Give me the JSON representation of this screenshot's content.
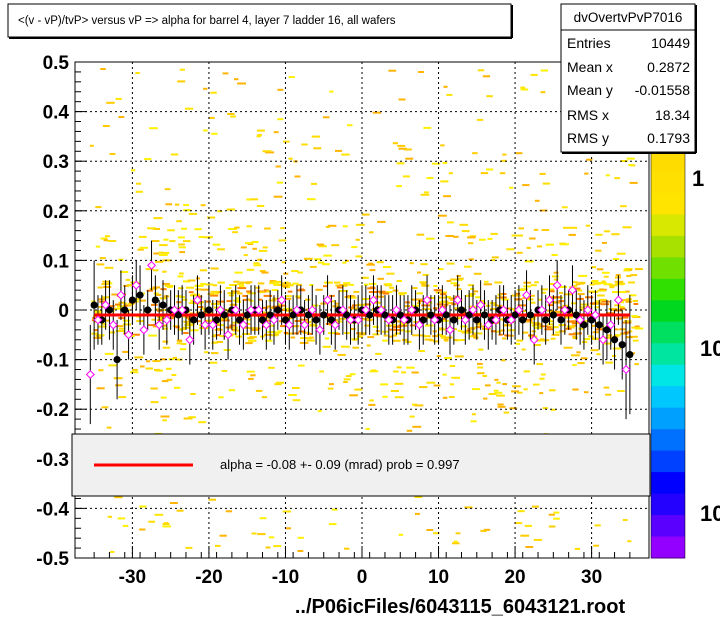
{
  "title": "<(v - vP)/tvP> versus   vP => alpha for barrel 4, layer 7 ladder 16, all wafers",
  "footer": "../P06icFiles/6043115_6043121.root",
  "stats": {
    "name": "dvOvertvPvP7016",
    "rows": [
      {
        "label": "Entries",
        "value": "10449"
      },
      {
        "label": "Mean x",
        "value": "0.2872"
      },
      {
        "label": "Mean y",
        "value": "-0.01558"
      },
      {
        "label": "RMS x",
        "value": "18.34"
      },
      {
        "label": "RMS y",
        "value": "0.1793"
      }
    ]
  },
  "legend": {
    "text": "alpha =   -0.08 +-  0.09 (mrad) prob = 0.997",
    "line_color": "#ff0000"
  },
  "palette": {
    "labels": [
      "1",
      "10",
      "10"
    ],
    "colors": [
      "#9400ff",
      "#5a00ff",
      "#2400ff",
      "#0000ff",
      "#0040ff",
      "#0070ff",
      "#00a0ff",
      "#00c8ff",
      "#00e6e6",
      "#00e6a0",
      "#00e060",
      "#00d820",
      "#30e000",
      "#70e000",
      "#a8e000",
      "#d8e800",
      "#ffe400",
      "#ffe000",
      "#ffdc00"
    ]
  },
  "chart_data": {
    "type": "scatter",
    "xlim": [
      -37.5,
      37.5
    ],
    "ylim": [
      -0.5,
      0.5
    ],
    "x_ticks": [
      -30,
      -20,
      -10,
      0,
      10,
      20,
      30
    ],
    "x_tick_labels": [
      "-30",
      "-20",
      "-10",
      "0",
      "10",
      "20",
      "30"
    ],
    "y_ticks": [
      -0.5,
      -0.4,
      -0.3,
      -0.2,
      -0.1,
      0,
      0.1,
      0.2,
      0.3,
      0.4,
      0.5
    ],
    "y_tick_labels": [
      "-0.5",
      "-0.4",
      "-0.3",
      "-0.2",
      "-0.1",
      "0",
      "0.1",
      "0.2",
      "0.3",
      "0.4",
      "0.5"
    ],
    "grid": true,
    "fit_line": {
      "x": [
        -35,
        35
      ],
      "y": [
        -0.01,
        -0.01
      ]
    },
    "series": [
      {
        "marker": "filled-circle",
        "color": "#000000",
        "x": [
          -35,
          -34,
          -33,
          -32,
          -31,
          -30,
          -29,
          -28,
          -27,
          -26,
          -25,
          -24,
          -23,
          -22,
          -21,
          -20,
          -19,
          -18,
          -17,
          -16,
          -15,
          -14,
          -13,
          -12,
          -11,
          -10,
          -9,
          -8,
          -7,
          -6,
          -5,
          -4,
          -3,
          -2,
          -1,
          0,
          1,
          2,
          3,
          4,
          5,
          6,
          7,
          8,
          9,
          10,
          11,
          12,
          13,
          14,
          15,
          16,
          17,
          18,
          19,
          20,
          21,
          22,
          23,
          24,
          25,
          26,
          27,
          28,
          29,
          30,
          31,
          32,
          33,
          34,
          35
        ],
        "y": [
          0.01,
          -0.02,
          0.0,
          -0.1,
          0.0,
          0.02,
          0.03,
          0.0,
          0.02,
          0.01,
          0.0,
          -0.01,
          0.0,
          -0.02,
          -0.01,
          0.0,
          -0.02,
          -0.01,
          0.0,
          -0.02,
          -0.01,
          0.0,
          -0.02,
          -0.01,
          0.0,
          -0.02,
          -0.01,
          0.0,
          -0.01,
          -0.02,
          -0.01,
          -0.02,
          0.0,
          -0.01,
          -0.02,
          0.0,
          -0.01,
          0.0,
          -0.01,
          -0.02,
          -0.01,
          -0.02,
          0.0,
          -0.02,
          -0.01,
          -0.02,
          -0.01,
          -0.02,
          0.0,
          -0.01,
          -0.02,
          -0.01,
          -0.02,
          0.0,
          -0.02,
          -0.01,
          -0.02,
          -0.01,
          0.0,
          -0.02,
          -0.01,
          -0.02,
          0.0,
          -0.01,
          -0.03,
          -0.02,
          -0.03,
          -0.04,
          -0.06,
          -0.07,
          -0.09
        ],
        "err": [
          0.09,
          0.05,
          0.06,
          0.08,
          0.05,
          0.05,
          0.06,
          0.04,
          0.05,
          0.05,
          0.04,
          0.05,
          0.04,
          0.05,
          0.04,
          0.05,
          0.04,
          0.05,
          0.04,
          0.05,
          0.04,
          0.05,
          0.04,
          0.05,
          0.04,
          0.05,
          0.04,
          0.05,
          0.04,
          0.05,
          0.04,
          0.05,
          0.04,
          0.05,
          0.04,
          0.05,
          0.04,
          0.05,
          0.04,
          0.05,
          0.04,
          0.05,
          0.04,
          0.05,
          0.04,
          0.05,
          0.04,
          0.05,
          0.04,
          0.05,
          0.04,
          0.05,
          0.04,
          0.05,
          0.04,
          0.05,
          0.04,
          0.05,
          0.04,
          0.05,
          0.04,
          0.05,
          0.04,
          0.05,
          0.05,
          0.05,
          0.05,
          0.06,
          0.06,
          0.07,
          0.12
        ]
      },
      {
        "marker": "open-diamond",
        "color": "#ff00ff",
        "x": [
          -35.5,
          -34.5,
          -33.5,
          -32.5,
          -31.5,
          -30.5,
          -29.5,
          -28.5,
          -27.5,
          -26.5,
          -25.5,
          -24.5,
          -23.5,
          -22.5,
          -21.5,
          -20.5,
          -19.5,
          -18.5,
          -17.5,
          -16.5,
          -15.5,
          -14.5,
          -13.5,
          -12.5,
          -11.5,
          -10.5,
          -9.5,
          -8.5,
          -7.5,
          -6.5,
          -5.5,
          -4.5,
          -3.5,
          -2.5,
          -1.5,
          -0.5,
          0.5,
          1.5,
          2.5,
          3.5,
          4.5,
          5.5,
          6.5,
          7.5,
          8.5,
          9.5,
          10.5,
          11.5,
          12.5,
          13.5,
          14.5,
          15.5,
          16.5,
          17.5,
          18.5,
          19.5,
          20.5,
          21.5,
          22.5,
          23.5,
          24.5,
          25.5,
          26.5,
          27.5,
          28.5,
          29.5,
          30.5,
          31.5,
          32.5,
          33.5,
          34.5
        ],
        "y": [
          -0.13,
          -0.02,
          0.01,
          -0.03,
          0.03,
          -0.05,
          0.05,
          -0.04,
          0.09,
          -0.03,
          -0.02,
          0.0,
          0.0,
          -0.06,
          0.02,
          -0.03,
          -0.03,
          0.0,
          -0.05,
          0.0,
          -0.03,
          0.0,
          0.0,
          -0.03,
          -0.02,
          0.02,
          -0.03,
          0.0,
          -0.03,
          0.0,
          -0.04,
          0.02,
          -0.03,
          0.0,
          -0.02,
          -0.02,
          0.0,
          0.02,
          0.0,
          -0.02,
          0.0,
          -0.02,
          0.0,
          -0.03,
          0.02,
          -0.02,
          0.0,
          -0.04,
          0.02,
          -0.02,
          0.0,
          0.01,
          -0.03,
          -0.02,
          0.0,
          -0.02,
          0.0,
          0.03,
          -0.06,
          0.0,
          0.02,
          0.05,
          0.0,
          0.04,
          -0.02,
          0.0,
          -0.01,
          -0.06,
          -0.03,
          0.02,
          -0.12
        ],
        "err": [
          0.1,
          0.05,
          0.05,
          0.05,
          0.05,
          0.05,
          0.05,
          0.05,
          0.05,
          0.05,
          0.05,
          0.05,
          0.05,
          0.05,
          0.05,
          0.05,
          0.05,
          0.05,
          0.05,
          0.05,
          0.05,
          0.05,
          0.05,
          0.05,
          0.05,
          0.05,
          0.05,
          0.05,
          0.05,
          0.05,
          0.05,
          0.05,
          0.05,
          0.05,
          0.05,
          0.05,
          0.05,
          0.05,
          0.05,
          0.05,
          0.05,
          0.05,
          0.05,
          0.05,
          0.05,
          0.05,
          0.05,
          0.05,
          0.05,
          0.05,
          0.05,
          0.05,
          0.05,
          0.05,
          0.05,
          0.05,
          0.05,
          0.05,
          0.05,
          0.05,
          0.05,
          0.05,
          0.05,
          0.05,
          0.05,
          0.05,
          0.05,
          0.05,
          0.05,
          0.05,
          0.1
        ]
      }
    ]
  }
}
